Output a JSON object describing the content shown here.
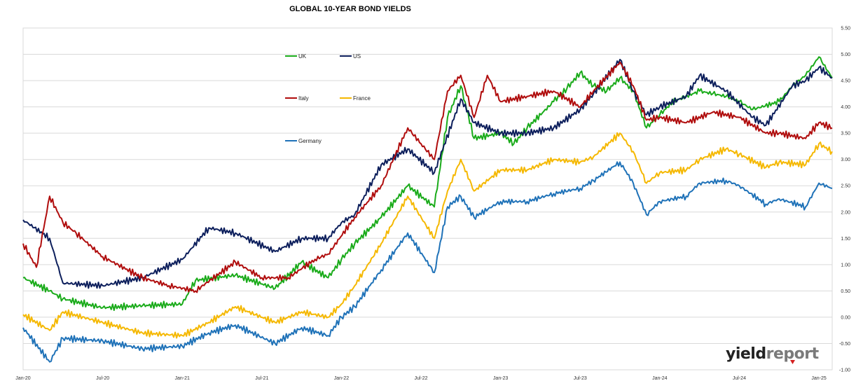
{
  "chart_data": {
    "type": "line",
    "title": "GLOBAL 10-YEAR BOND YIELDS",
    "x_ticks": [
      "Jan-20",
      "Jul-20",
      "Jan-21",
      "Jul-21",
      "Jan-22",
      "Jul-22",
      "Jan-23",
      "Jul-23",
      "Jan-24",
      "Jul-24",
      "Jan-25"
    ],
    "y_ticks": [
      "5.50",
      "5.00",
      "4.50",
      "4.00",
      "3.50",
      "3.00",
      "2.50",
      "2.00",
      "1.50",
      "1.00",
      "0.50",
      "0.00",
      "-0.50",
      "-1.00"
    ],
    "ylim": [
      -1.0,
      5.5
    ],
    "xlim": [
      "2020-01",
      "2025-02"
    ],
    "grid": "horizontal",
    "legend_placement": "top-left-inside",
    "series": [
      {
        "name": "UK",
        "color": "#1aab1a",
        "x": [
          "2020-01",
          "2020-03",
          "2020-04",
          "2020-07",
          "2020-10",
          "2021-01",
          "2021-02",
          "2021-05",
          "2021-08",
          "2021-10",
          "2021-12",
          "2022-01",
          "2022-02",
          "2022-04",
          "2022-06",
          "2022-08",
          "2022-09",
          "2022-10",
          "2022-11",
          "2023-01",
          "2023-02",
          "2023-03",
          "2023-05",
          "2023-06",
          "2023-07",
          "2023-08",
          "2023-09",
          "2023-10",
          "2023-11",
          "2023-12",
          "2024-01",
          "2024-02",
          "2024-04",
          "2024-05",
          "2024-06",
          "2024-07",
          "2024-08",
          "2024-10",
          "2024-11",
          "2024-12",
          "2025-01",
          "2025-02"
        ],
        "values": [
          0.75,
          0.5,
          0.35,
          0.18,
          0.22,
          0.25,
          0.7,
          0.8,
          0.55,
          1.05,
          0.75,
          1.1,
          1.4,
          1.9,
          2.5,
          2.1,
          3.8,
          4.4,
          3.4,
          3.5,
          3.3,
          3.6,
          4.1,
          4.35,
          4.65,
          4.4,
          4.3,
          4.55,
          4.3,
          3.6,
          3.85,
          4.1,
          4.3,
          4.25,
          4.2,
          4.1,
          3.95,
          4.1,
          4.4,
          4.6,
          4.95,
          4.55
        ]
      },
      {
        "name": "US",
        "color": "#0d1f5c",
        "x": [
          "2020-01",
          "2020-03",
          "2020-04",
          "2020-07",
          "2020-10",
          "2021-01",
          "2021-03",
          "2021-05",
          "2021-08",
          "2021-10",
          "2021-12",
          "2022-01",
          "2022-02",
          "2022-04",
          "2022-06",
          "2022-08",
          "2022-10",
          "2022-11",
          "2023-01",
          "2023-03",
          "2023-05",
          "2023-07",
          "2023-08",
          "2023-10",
          "2023-11",
          "2023-12",
          "2024-01",
          "2024-03",
          "2024-04",
          "2024-06",
          "2024-08",
          "2024-09",
          "2024-11",
          "2024-12",
          "2025-01",
          "2025-02"
        ],
        "values": [
          1.85,
          1.5,
          0.65,
          0.6,
          0.75,
          1.1,
          1.7,
          1.6,
          1.25,
          1.5,
          1.5,
          1.8,
          1.95,
          2.9,
          3.2,
          2.75,
          4.15,
          3.7,
          3.5,
          3.5,
          3.6,
          3.95,
          4.25,
          4.9,
          4.3,
          3.85,
          4.0,
          4.2,
          4.6,
          4.3,
          3.8,
          3.65,
          4.4,
          4.5,
          4.75,
          4.55
        ]
      },
      {
        "name": "Italy",
        "color": "#b00d0d",
        "x": [
          "2020-01",
          "2020-02",
          "2020-03",
          "2020-04",
          "2020-05",
          "2020-07",
          "2020-10",
          "2020-12",
          "2021-02",
          "2021-05",
          "2021-07",
          "2021-09",
          "2021-11",
          "2021-12",
          "2022-02",
          "2022-04",
          "2022-06",
          "2022-07",
          "2022-08",
          "2022-09",
          "2022-10",
          "2022-11",
          "2022-12",
          "2023-01",
          "2023-03",
          "2023-05",
          "2023-07",
          "2023-08",
          "2023-10",
          "2023-11",
          "2023-12",
          "2024-01",
          "2024-03",
          "2024-05",
          "2024-07",
          "2024-09",
          "2024-10",
          "2024-12",
          "2025-01",
          "2025-02"
        ],
        "values": [
          1.4,
          0.95,
          2.3,
          1.8,
          1.6,
          1.15,
          0.75,
          0.6,
          0.5,
          1.05,
          0.75,
          0.75,
          1.1,
          1.2,
          1.9,
          2.5,
          3.6,
          3.3,
          3.0,
          4.3,
          4.6,
          3.8,
          4.6,
          4.1,
          4.2,
          4.3,
          4.0,
          4.3,
          4.85,
          4.4,
          3.75,
          3.8,
          3.7,
          3.9,
          3.8,
          3.5,
          3.5,
          3.4,
          3.7,
          3.6
        ]
      },
      {
        "name": "France",
        "color": "#f5b800",
        "x": [
          "2020-01",
          "2020-03",
          "2020-04",
          "2020-07",
          "2020-10",
          "2021-01",
          "2021-03",
          "2021-05",
          "2021-08",
          "2021-10",
          "2021-12",
          "2022-01",
          "2022-02",
          "2022-04",
          "2022-06",
          "2022-08",
          "2022-09",
          "2022-10",
          "2022-11",
          "2023-01",
          "2023-03",
          "2023-05",
          "2023-07",
          "2023-08",
          "2023-10",
          "2023-11",
          "2023-12",
          "2024-01",
          "2024-03",
          "2024-04",
          "2024-06",
          "2024-07",
          "2024-09",
          "2024-10",
          "2024-12",
          "2025-01",
          "2025-02"
        ],
        "values": [
          0.05,
          -0.25,
          0.1,
          -0.1,
          -0.3,
          -0.35,
          -0.1,
          0.2,
          -0.1,
          0.1,
          0.0,
          0.25,
          0.6,
          1.4,
          2.3,
          1.5,
          2.4,
          3.0,
          2.4,
          2.8,
          2.8,
          3.0,
          2.95,
          3.05,
          3.5,
          3.15,
          2.55,
          2.75,
          2.8,
          3.0,
          3.2,
          3.1,
          2.85,
          2.95,
          2.9,
          3.3,
          3.15
        ]
      },
      {
        "name": "Germany",
        "color": "#1f72b8",
        "x": [
          "2020-01",
          "2020-03",
          "2020-04",
          "2020-07",
          "2020-10",
          "2021-01",
          "2021-03",
          "2021-05",
          "2021-08",
          "2021-10",
          "2021-12",
          "2022-01",
          "2022-02",
          "2022-04",
          "2022-06",
          "2022-08",
          "2022-09",
          "2022-10",
          "2022-11",
          "2023-01",
          "2023-03",
          "2023-05",
          "2023-07",
          "2023-08",
          "2023-10",
          "2023-11",
          "2023-12",
          "2024-01",
          "2024-03",
          "2024-04",
          "2024-06",
          "2024-07",
          "2024-09",
          "2024-10",
          "2024-12",
          "2025-01",
          "2025-02"
        ],
        "values": [
          -0.2,
          -0.85,
          -0.4,
          -0.45,
          -0.6,
          -0.55,
          -0.3,
          -0.15,
          -0.5,
          -0.2,
          -0.35,
          0.0,
          0.2,
          0.9,
          1.6,
          0.85,
          2.1,
          2.3,
          1.9,
          2.2,
          2.2,
          2.35,
          2.45,
          2.6,
          2.95,
          2.55,
          1.95,
          2.2,
          2.3,
          2.55,
          2.6,
          2.5,
          2.15,
          2.25,
          2.1,
          2.55,
          2.45
        ]
      }
    ]
  },
  "brand": {
    "name_prefix": "yield",
    "name_suffix": "report",
    "prefix_color": "#222222",
    "suffix_color": "#7a7a7a",
    "accent_color": "#d42020"
  }
}
